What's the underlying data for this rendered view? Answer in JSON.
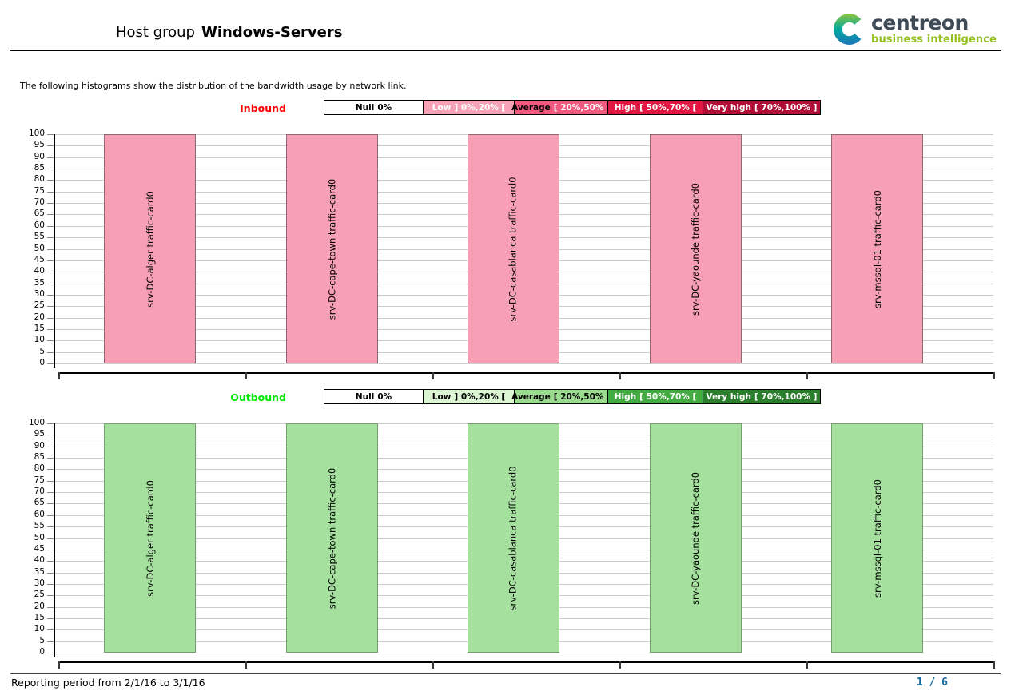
{
  "header": {
    "title_prefix": "Host group",
    "title_bold": "Windows-Servers",
    "logo": {
      "wordmark": "centreon",
      "subtitle": "business intelligence",
      "wordmark_color": "#3e4b57",
      "subtitle_color": "#94c11e",
      "icon": "centreon-c-swoosh",
      "icon_gradient": [
        "#8cc63f",
        "#00a99d",
        "#1b75bb"
      ]
    }
  },
  "intro_text": "The following histograms show the distribution of the bandwidth usage by network link.",
  "sections": [
    {
      "id": "inbound",
      "label": "Inbound",
      "label_color": "#ff0000",
      "legend": [
        {
          "label": "Null",
          "range": "0%",
          "bg": "#ffffff",
          "label_color": "#000000",
          "range_color": "#000000"
        },
        {
          "label": "Low",
          "range": "] 0%,20% [",
          "bg": "#f7a2b6",
          "label_color": "#ffffff",
          "range_color": "#ffffff"
        },
        {
          "label": "Average",
          "range": "[ 20%,50% [",
          "bg": "#f2597f",
          "label_color": "#000000",
          "range_color": "#ffffff"
        },
        {
          "label": "High",
          "range": "[ 50%,70% [",
          "bg": "#e11742",
          "label_color": "#ffffff",
          "range_color": "#ffffff"
        },
        {
          "label": "Very high",
          "range": "[ 70%,100% ]",
          "bg": "#b10e37",
          "label_color": "#ffffff",
          "range_color": "#ffffff"
        }
      ]
    },
    {
      "id": "outbound",
      "label": "Outbound",
      "label_color": "#00e600",
      "legend": [
        {
          "label": "Null",
          "range": "0%",
          "bg": "#ffffff",
          "label_color": "#000000",
          "range_color": "#000000"
        },
        {
          "label": "Low",
          "range": "] 0%,20% [",
          "bg": "#dcf6d4",
          "label_color": "#000000",
          "range_color": "#000000"
        },
        {
          "label": "Average",
          "range": "[ 20%,50% [",
          "bg": "#9bdb90",
          "label_color": "#000000",
          "range_color": "#000000"
        },
        {
          "label": "High",
          "range": "[ 50%,70% [",
          "bg": "#42ab41",
          "label_color": "#ffffff",
          "range_color": "#ffffff"
        },
        {
          "label": "Very high",
          "range": "[ 70%,100% ]",
          "bg": "#2b7e2c",
          "label_color": "#ffffff",
          "range_color": "#ffffff"
        }
      ]
    }
  ],
  "chart_data": [
    {
      "type": "bar",
      "title": "Inbound",
      "series_label": "Inbound",
      "categories": [
        "srv-DC-alger traffic-card0",
        "srv-DC-cape-town traffic-card0",
        "srv-DC-casablanca traffic-card0",
        "srv-DC-yaounde traffic-card0",
        "srv-mssql-01 traffic-card0"
      ],
      "values": [
        100,
        100,
        100,
        100,
        100
      ],
      "ylim": [
        0,
        100
      ],
      "ytick_step": 5,
      "grid": true,
      "legend_position": "top",
      "bar_color": "#f7a0b5",
      "bar_border": "#8d6a73"
    },
    {
      "type": "bar",
      "title": "Outbound",
      "series_label": "Outbound",
      "categories": [
        "srv-DC-alger traffic-card0",
        "srv-DC-cape-town traffic-card0",
        "srv-DC-casablanca traffic-card0",
        "srv-DC-yaounde traffic-card0",
        "srv-mssql-01 traffic-card0"
      ],
      "values": [
        100,
        100,
        100,
        100,
        100
      ],
      "ylim": [
        0,
        100
      ],
      "ytick_step": 5,
      "grid": true,
      "legend_position": "top",
      "bar_color": "#a5e09e",
      "bar_border": "#74a06e"
    }
  ],
  "footer": {
    "reporting_period": "Reporting period from 2/1/16 to 3/1/16",
    "page": "1 / 6"
  }
}
